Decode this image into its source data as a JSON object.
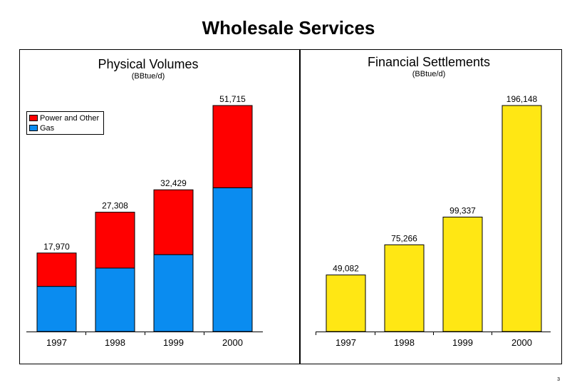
{
  "title": "Wholesale Services",
  "page_number": "3",
  "chart_data": [
    {
      "type": "bar",
      "stacked": true,
      "title": "Physical Volumes",
      "subtitle": "(BBtue/d)",
      "categories": [
        "1997",
        "1998",
        "1999",
        "2000"
      ],
      "totals": [
        17970,
        27308,
        32429,
        51715
      ],
      "total_labels": [
        "17,970",
        "27,308",
        "32,429",
        "51,715"
      ],
      "series": [
        {
          "name": "Gas",
          "color": "#0A8CF0",
          "values": [
            10340,
            14520,
            17600,
            32900
          ]
        },
        {
          "name": "Power and Other",
          "color": "#FF0000",
          "values": [
            7630,
            12788,
            14829,
            18815
          ]
        }
      ],
      "ylim": [
        0,
        56000
      ],
      "legend": {
        "placement": "top-left",
        "entries": [
          "Power and Other",
          "Gas"
        ]
      },
      "grid": false
    },
    {
      "type": "bar",
      "title": "Financial Settlements",
      "subtitle": "(BBtue/d)",
      "categories": [
        "1997",
        "1998",
        "1999",
        "2000"
      ],
      "values": [
        49082,
        75266,
        99337,
        196148
      ],
      "value_labels": [
        "49,082",
        "75,266",
        "99,337",
        "196,148"
      ],
      "color": "#FFE714",
      "ylim": [
        0,
        215000
      ],
      "grid": false
    }
  ]
}
